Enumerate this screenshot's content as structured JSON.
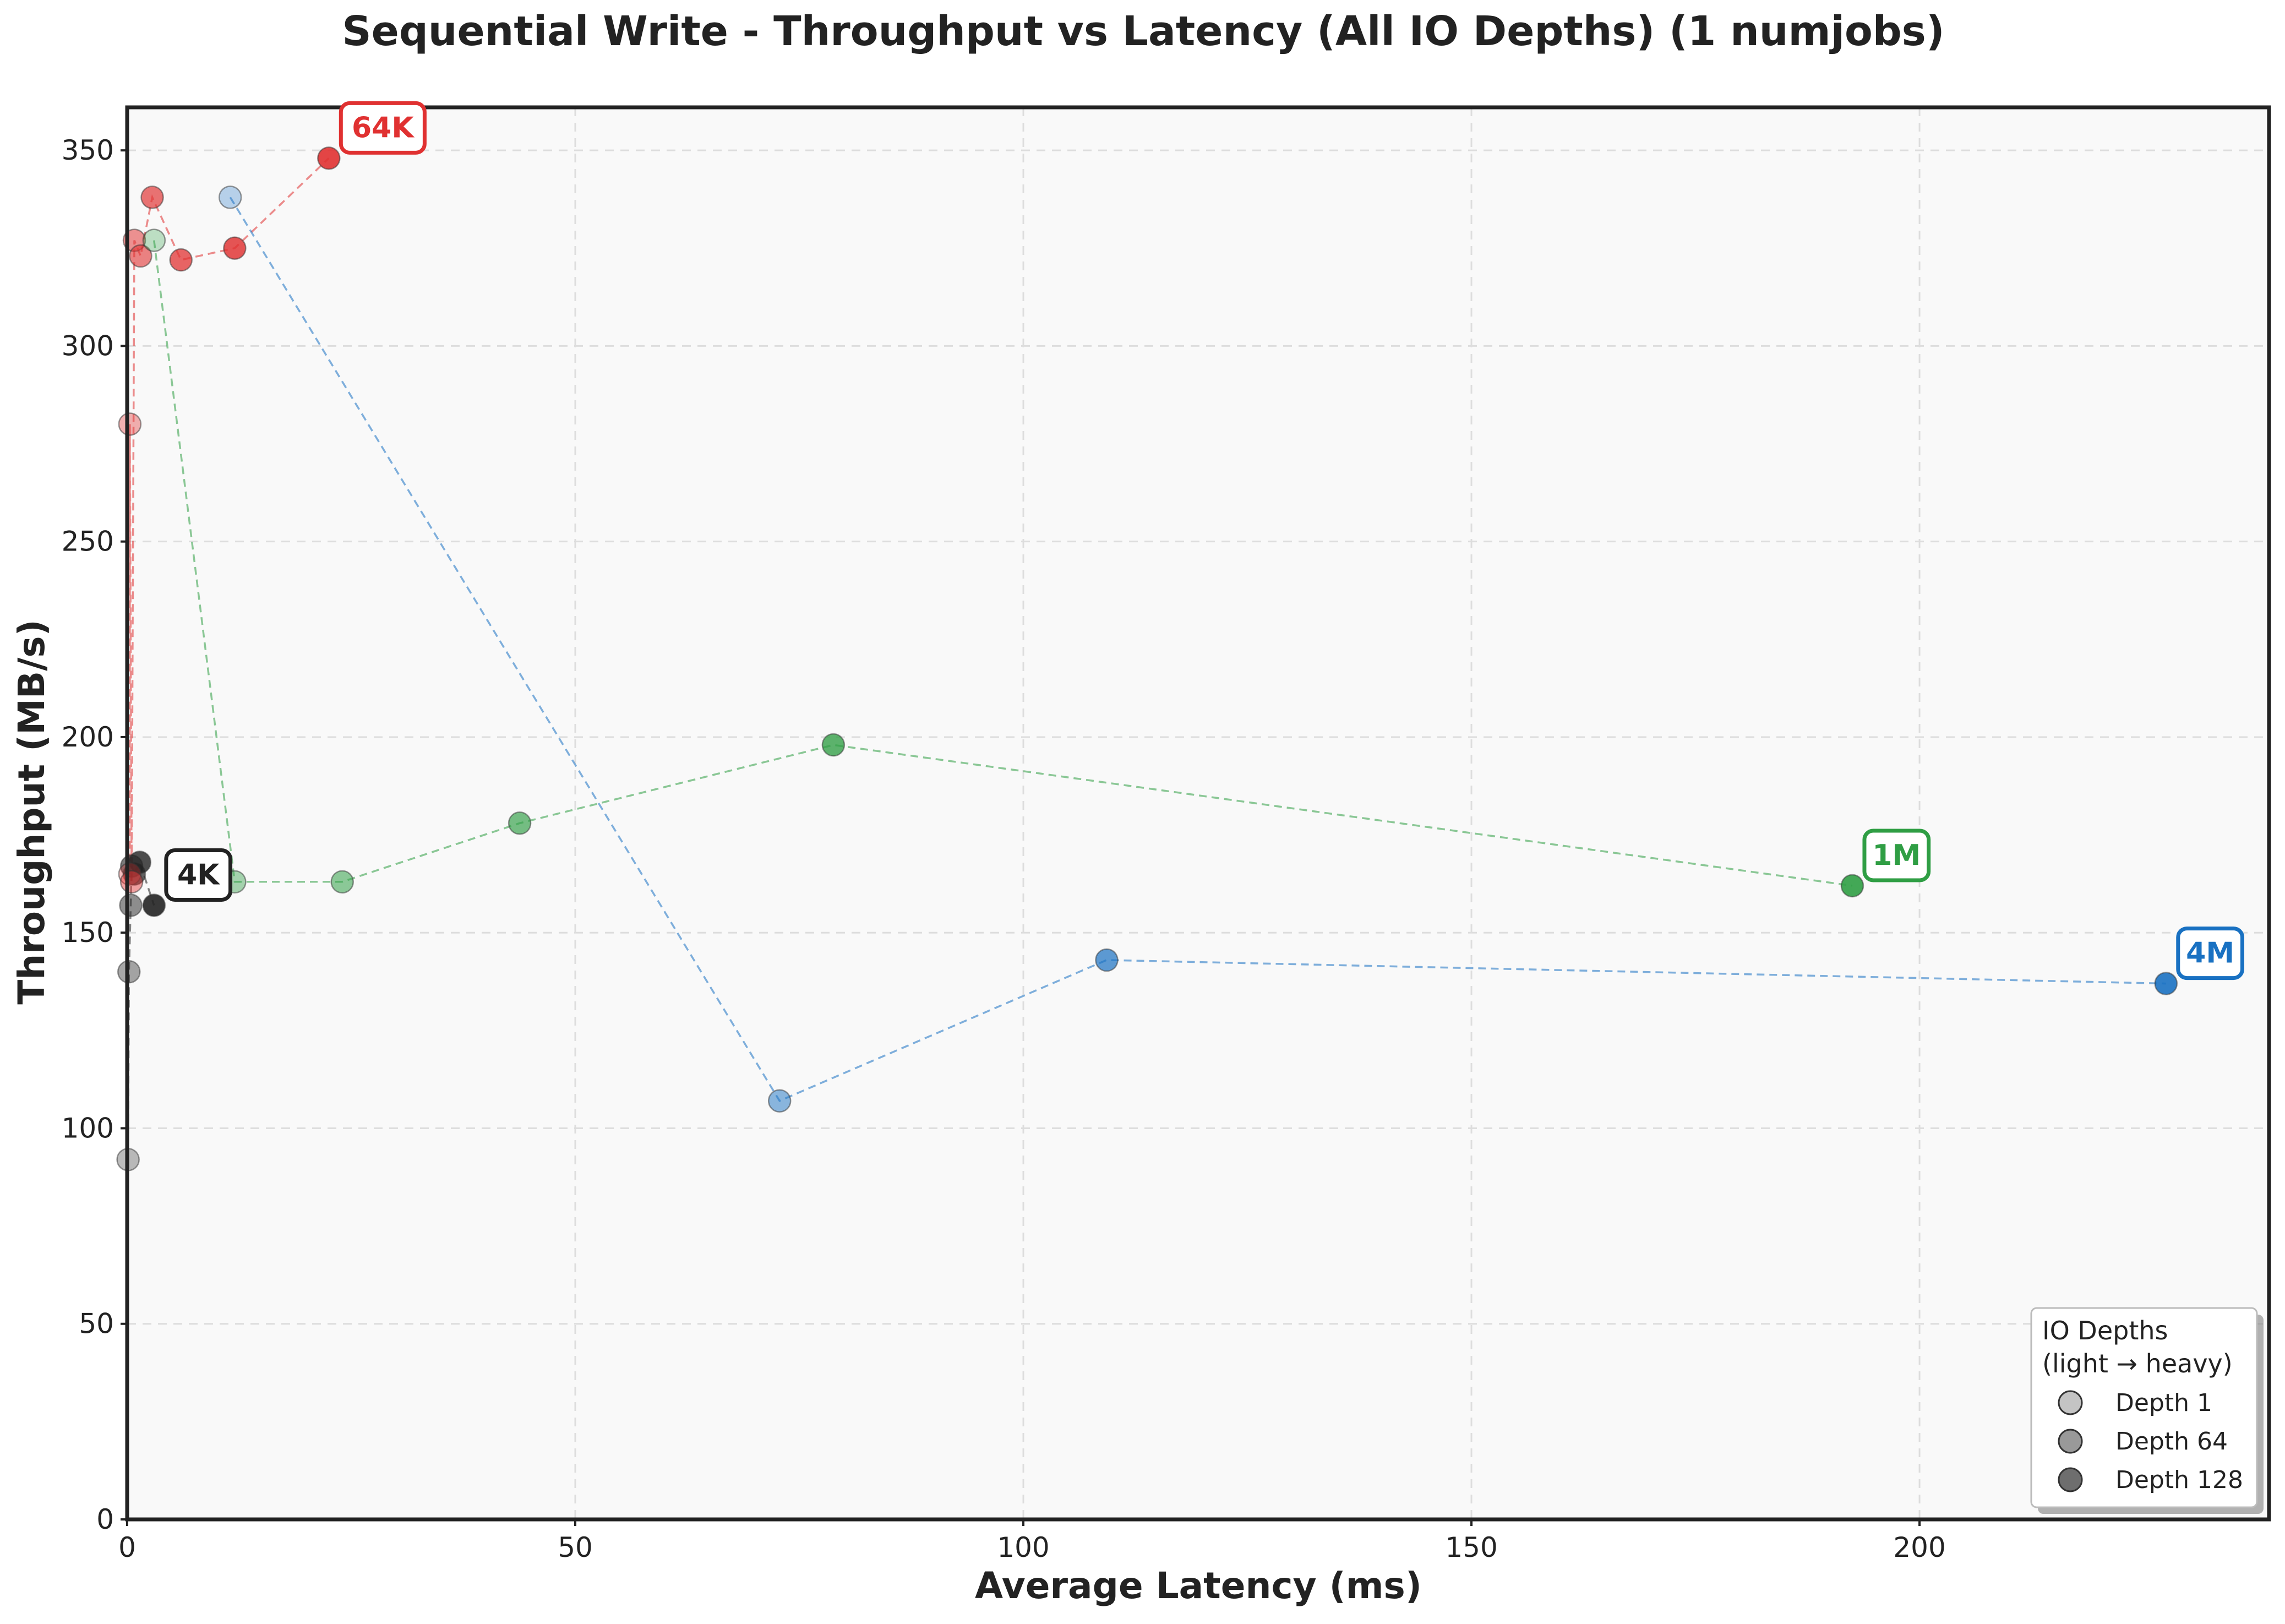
{
  "chart_data": {
    "type": "scatter",
    "title": "Sequential Write - Throughput vs Latency (All IO Depths) (1 numjobs)",
    "xlabel": "Average Latency (ms)",
    "ylabel": "Throughput (MB/s)",
    "xlim": [
      0,
      239
    ],
    "ylim": [
      0,
      361
    ],
    "xticks": [
      0,
      50,
      100,
      150,
      200
    ],
    "yticks": [
      0,
      50,
      100,
      150,
      200,
      250,
      300,
      350
    ],
    "grid": true,
    "legend": {
      "title_line1": "IO Depths",
      "title_line2": "(light → heavy)",
      "placement": "bottom-right",
      "entries": [
        {
          "label": "Depth 1",
          "opacity": 0.35
        },
        {
          "label": "Depth 64",
          "opacity": 0.6
        },
        {
          "label": "Depth 128",
          "opacity": 0.85
        }
      ]
    },
    "series": [
      {
        "name": "4K",
        "color": "#222222",
        "points": [
          {
            "x": 0.1,
            "y": 92
          },
          {
            "x": 0.2,
            "y": 140
          },
          {
            "x": 0.4,
            "y": 157
          },
          {
            "x": 0.5,
            "y": 167
          },
          {
            "x": 0.8,
            "y": 165
          },
          {
            "x": 1.4,
            "y": 168
          },
          {
            "x": 3.0,
            "y": 157
          }
        ]
      },
      {
        "name": "64K",
        "color": "#e03131",
        "points": [
          {
            "x": 0.3,
            "y": 165
          },
          {
            "x": 0.3,
            "y": 280
          },
          {
            "x": 0.5,
            "y": 163
          },
          {
            "x": 0.8,
            "y": 327
          },
          {
            "x": 1.5,
            "y": 323
          },
          {
            "x": 2.8,
            "y": 338
          },
          {
            "x": 6.0,
            "y": 322
          },
          {
            "x": 12.0,
            "y": 325
          },
          {
            "x": 22.5,
            "y": 348
          }
        ]
      },
      {
        "name": "1M",
        "color": "#2f9e44",
        "points": [
          {
            "x": 3.0,
            "y": 327
          },
          {
            "x": 12.0,
            "y": 163
          },
          {
            "x": 24.0,
            "y": 163
          },
          {
            "x": 43.8,
            "y": 178
          },
          {
            "x": 78.8,
            "y": 198
          },
          {
            "x": 192.5,
            "y": 162
          }
        ]
      },
      {
        "name": "4M",
        "color": "#1971c2",
        "points": [
          {
            "x": 11.5,
            "y": 338
          },
          {
            "x": 72.8,
            "y": 107
          },
          {
            "x": 109.3,
            "y": 143
          },
          {
            "x": 227.5,
            "y": 137
          }
        ]
      }
    ]
  }
}
